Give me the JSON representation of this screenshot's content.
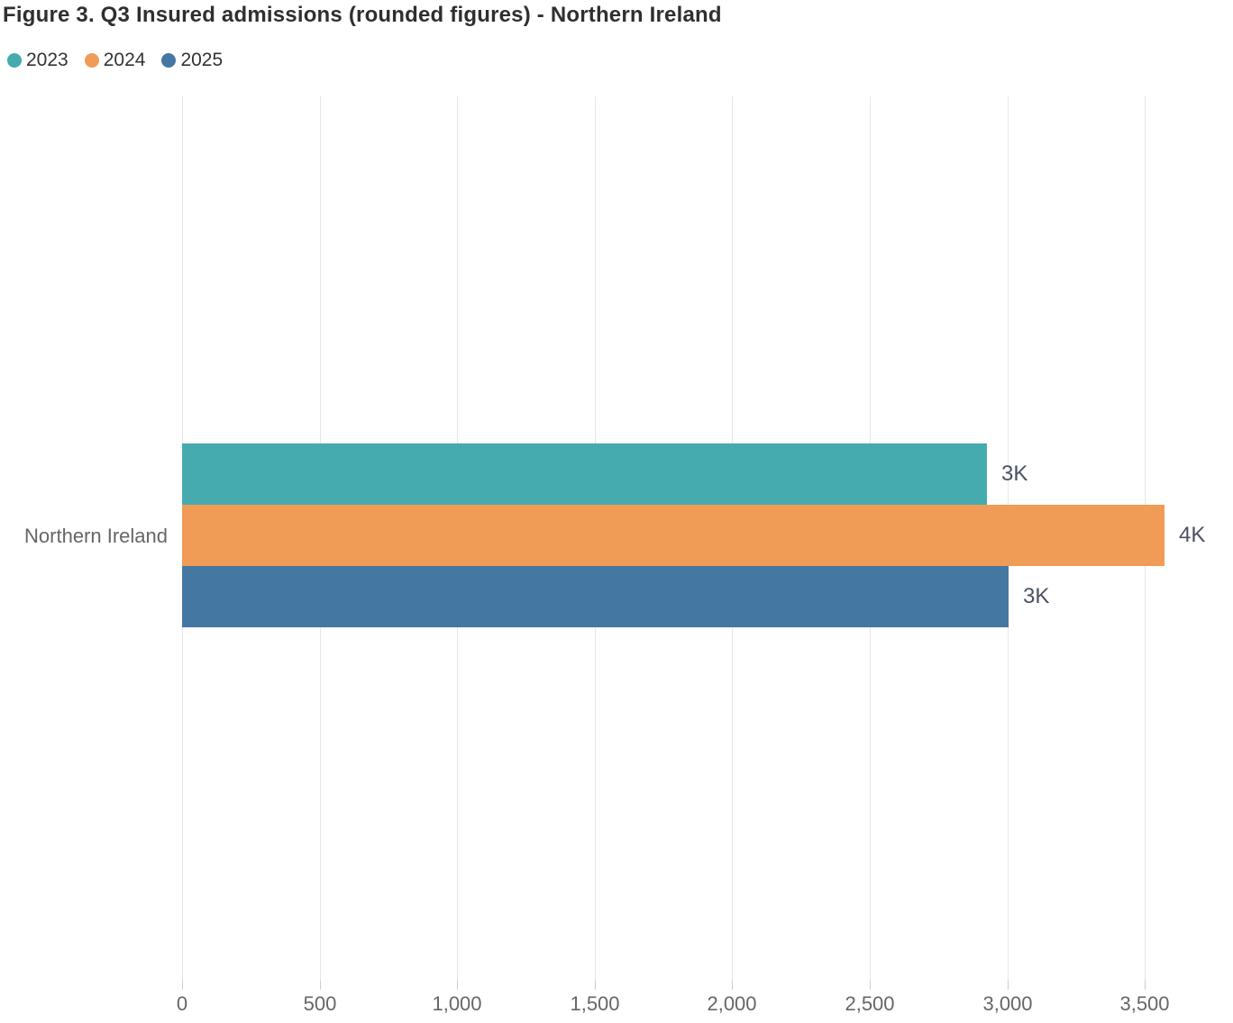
{
  "title": "Figure 3. Q3 Insured admissions (rounded figures) - Northern Ireland",
  "chart_data": {
    "type": "bar",
    "orientation": "horizontal",
    "title": "Figure 3. Q3 Insured admissions (rounded figures) - Northern Ireland",
    "categories": [
      "Northern Ireland"
    ],
    "series": [
      {
        "name": "2023",
        "color": "#45abae",
        "values": [
          2925
        ],
        "labels": [
          "3K"
        ]
      },
      {
        "name": "2024",
        "color": "#f09c56",
        "values": [
          3570
        ],
        "labels": [
          "4K"
        ]
      },
      {
        "name": "2025",
        "color": "#4577a3",
        "values": [
          3005
        ],
        "labels": [
          "3K"
        ]
      }
    ],
    "xlabel": "",
    "ylabel": "",
    "x_ticks": [
      0,
      500,
      1000,
      1500,
      2000,
      2500,
      3000,
      3500
    ],
    "x_tick_labels": [
      "0",
      "500",
      "1,000",
      "1,500",
      "2,000",
      "2,500",
      "3,000",
      "3,500"
    ],
    "xlim": [
      0,
      3820
    ],
    "grid": "vertical",
    "legend_position": "top-left",
    "colors": {
      "title_text": "#2f2f2f",
      "legend_text": "#333333",
      "axis_text": "#666666",
      "data_label_text": "#4a5160",
      "gridline": "#e6e6e6",
      "tick": "#cccccc",
      "background": "#ffffff"
    }
  }
}
